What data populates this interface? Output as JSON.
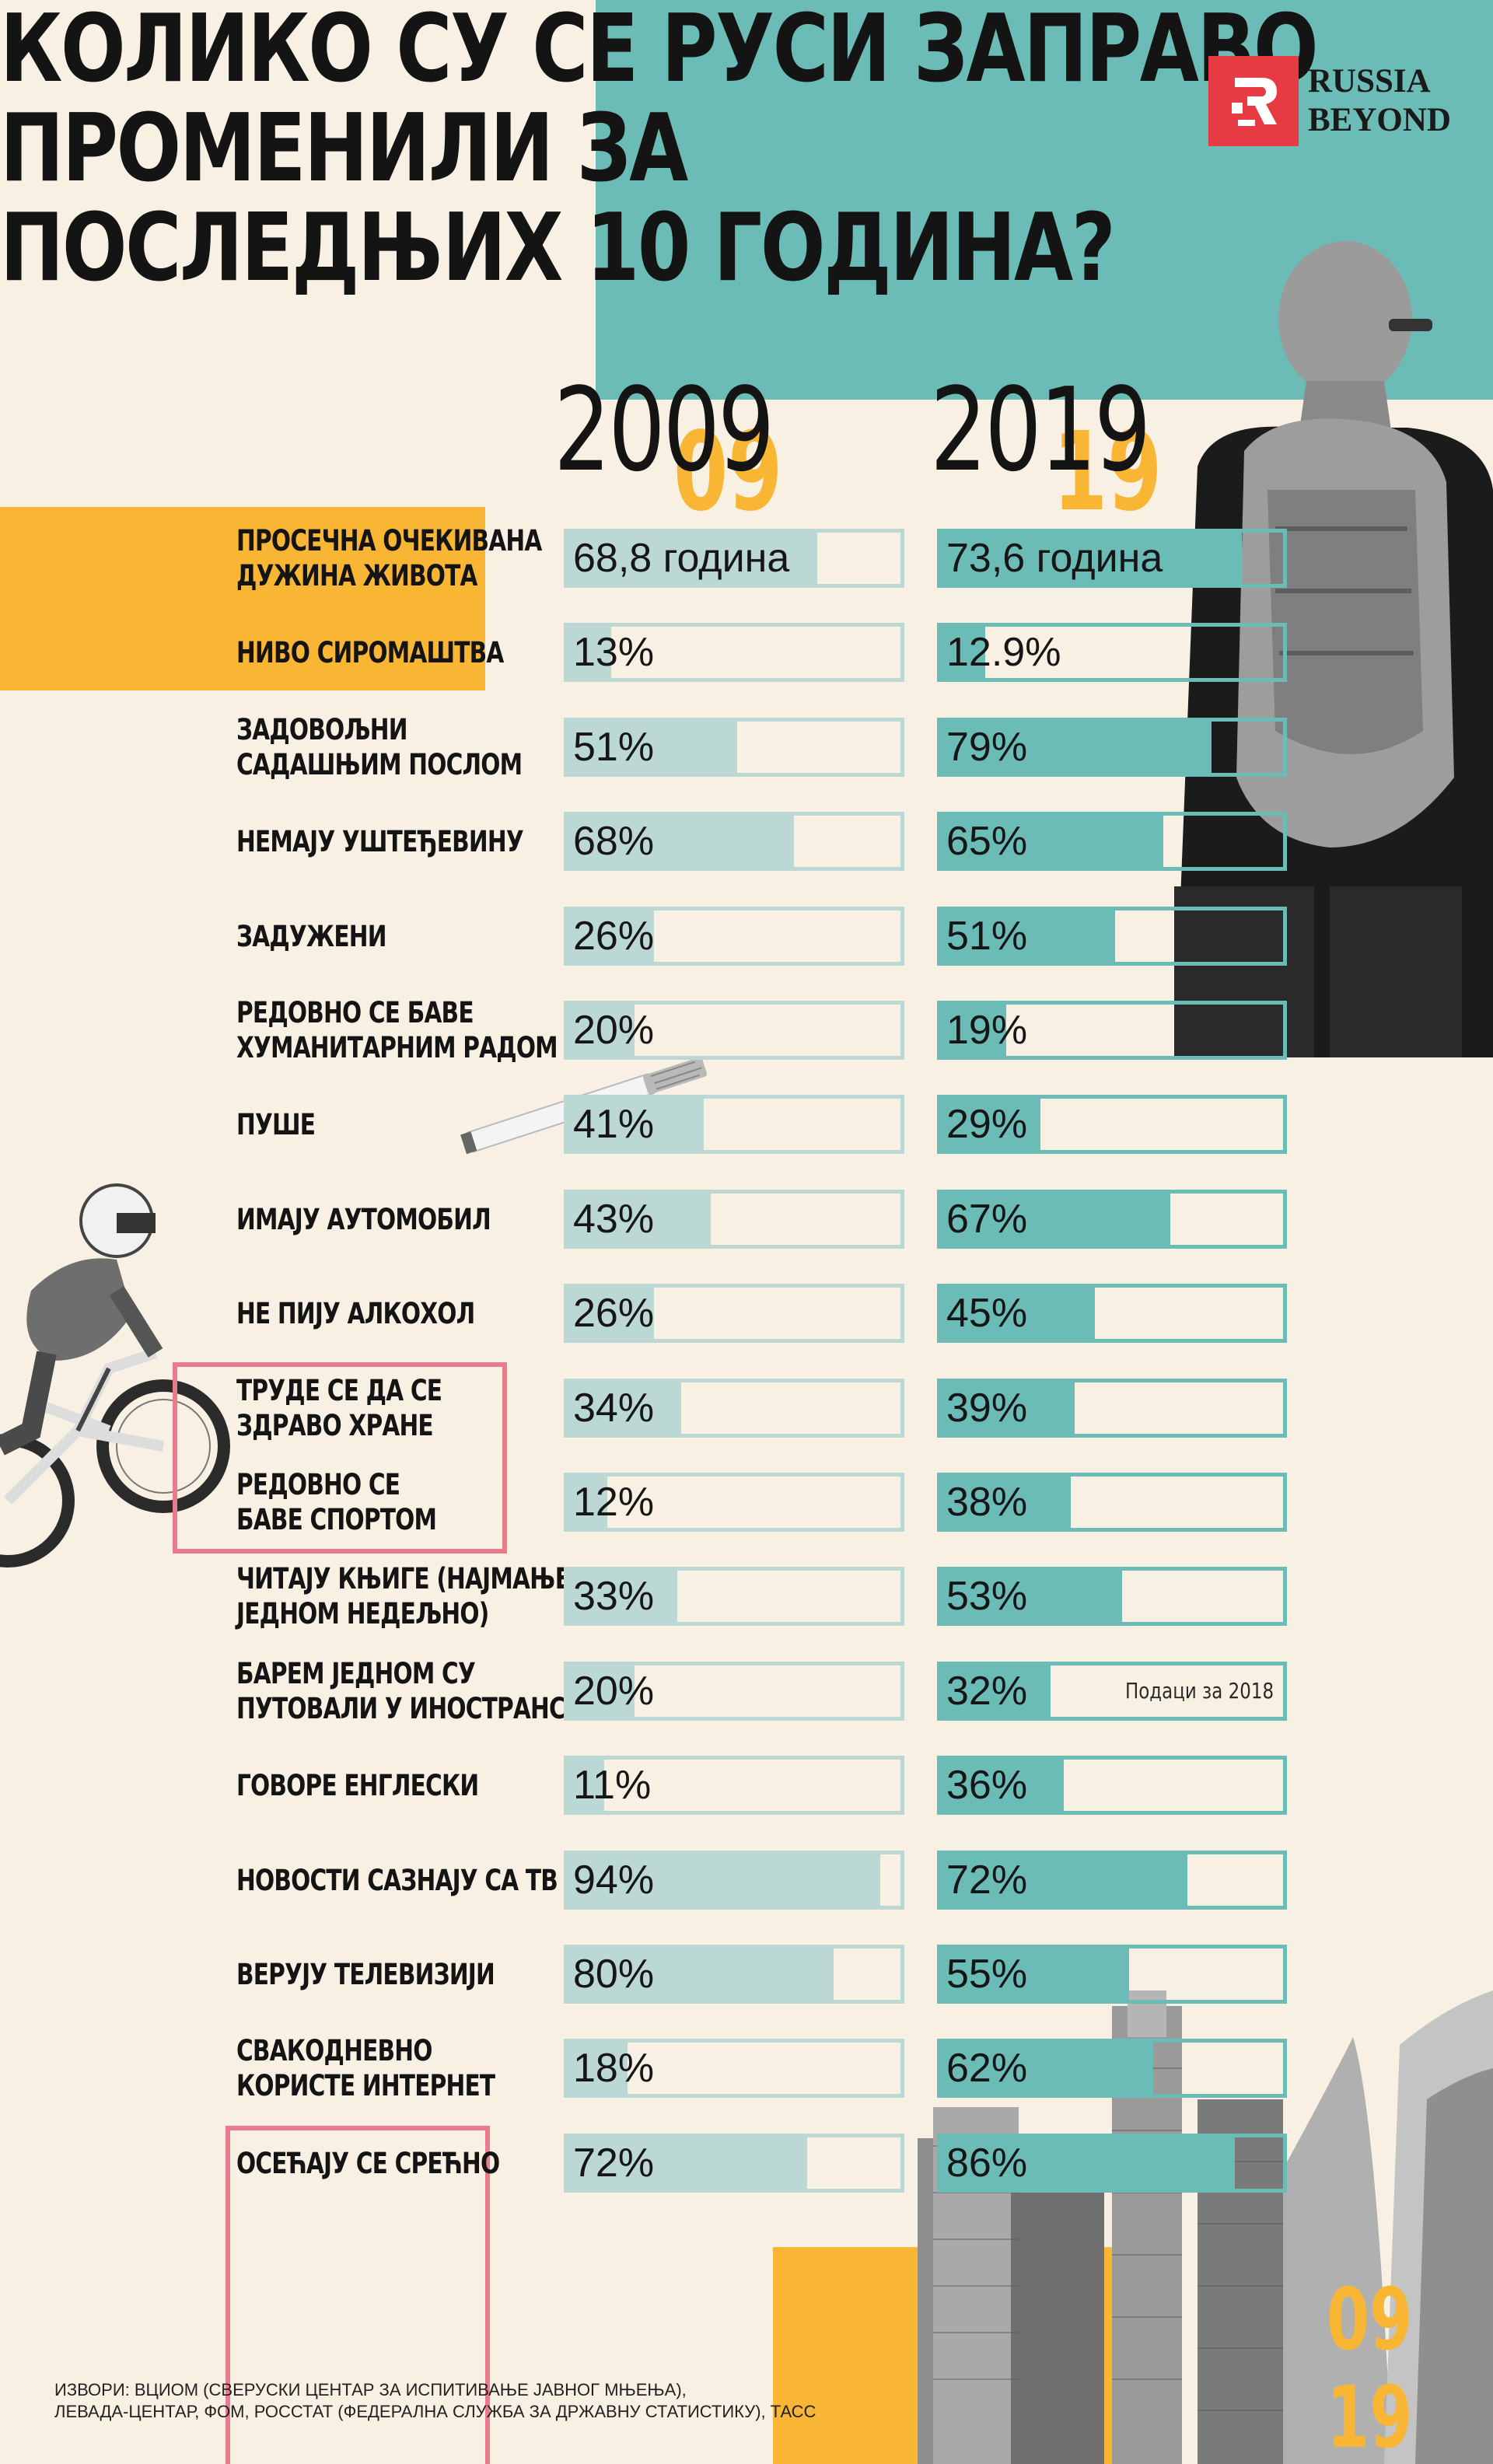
{
  "title": {
    "lines": [
      "Колико су се Руси заправо",
      "променили за",
      "последњих 10 година?"
    ]
  },
  "logo": {
    "line1": "RUSSIA",
    "line2": "BEYOND"
  },
  "years": {
    "a": "2009",
    "b": "2019",
    "a_short": "09",
    "b_short": "19"
  },
  "corner_years": {
    "line1": "09",
    "line2": "19"
  },
  "colors": {
    "teal": "#6bbcb6",
    "light_teal": "#bcd8d5",
    "orange": "#f8b634",
    "pink": "#ea7b8f",
    "background": "#f8f1e3",
    "logo_red": "#e63b42"
  },
  "chart_data": {
    "type": "bar",
    "series": [
      {
        "name": "2009",
        "values": [
          68.8,
          13,
          51,
          68,
          26,
          20,
          41,
          43,
          26,
          34,
          12,
          33,
          20,
          11,
          94,
          80,
          18,
          72
        ]
      },
      {
        "name": "2019",
        "values": [
          73.6,
          12.9,
          79,
          65,
          51,
          19,
          29,
          67,
          45,
          39,
          38,
          53,
          32,
          36,
          72,
          55,
          62,
          86
        ]
      }
    ],
    "rows": [
      {
        "label_lines": [
          "Просечна очекивана",
          "дужина живота"
        ],
        "a_text": "68,8 година",
        "b_text": "73,6 година",
        "a_fill": 0.75,
        "b_fill": 0.88
      },
      {
        "label_lines": [
          "Ниво сиромаштва"
        ],
        "a_text": "13%",
        "b_text": "12.9%",
        "a_fill": 0.13,
        "b_fill": 0.129
      },
      {
        "label_lines": [
          "Задовољни",
          "садашњим послом"
        ],
        "a_text": "51%",
        "b_text": "79%",
        "a_fill": 0.51,
        "b_fill": 0.79
      },
      {
        "label_lines": [
          "Немају уштеђевину"
        ],
        "a_text": "68%",
        "b_text": "65%",
        "a_fill": 0.68,
        "b_fill": 0.65
      },
      {
        "label_lines": [
          "Задужени"
        ],
        "a_text": "26%",
        "b_text": "51%",
        "a_fill": 0.26,
        "b_fill": 0.51
      },
      {
        "label_lines": [
          "Редовно се баве",
          "хуманитарним радом"
        ],
        "a_text": "20%",
        "b_text": "19%",
        "a_fill": 0.2,
        "b_fill": 0.19
      },
      {
        "label_lines": [
          "Пуше"
        ],
        "a_text": "41%",
        "b_text": "29%",
        "a_fill": 0.41,
        "b_fill": 0.29
      },
      {
        "label_lines": [
          "Имају аутомобил"
        ],
        "a_text": "43%",
        "b_text": "67%",
        "a_fill": 0.43,
        "b_fill": 0.67
      },
      {
        "label_lines": [
          "Не пију алкохол"
        ],
        "a_text": "26%",
        "b_text": "45%",
        "a_fill": 0.26,
        "b_fill": 0.45
      },
      {
        "label_lines": [
          "Труде се да се",
          "здраво хране"
        ],
        "a_text": "34%",
        "b_text": "39%",
        "a_fill": 0.34,
        "b_fill": 0.39
      },
      {
        "label_lines": [
          "Редовно се",
          "баве спортом"
        ],
        "a_text": "12%",
        "b_text": "38%",
        "a_fill": 0.12,
        "b_fill": 0.38
      },
      {
        "label_lines": [
          "Читају књиге (најмање",
          "једном недељно)"
        ],
        "a_text": "33%",
        "b_text": "53%",
        "a_fill": 0.33,
        "b_fill": 0.53
      },
      {
        "label_lines": [
          "Барем једном су",
          "путовали у иностранство"
        ],
        "a_text": "20%",
        "b_text": "32%",
        "a_fill": 0.2,
        "b_fill": 0.32,
        "b_note": "Подаци за 2018"
      },
      {
        "label_lines": [
          "Говоре енглески"
        ],
        "a_text": "11%",
        "b_text": "36%",
        "a_fill": 0.11,
        "b_fill": 0.36
      },
      {
        "label_lines": [
          "Новости сазнају са ТВ"
        ],
        "a_text": "94%",
        "b_text": "72%",
        "a_fill": 0.94,
        "b_fill": 0.72
      },
      {
        "label_lines": [
          "Верују телевизији"
        ],
        "a_text": "80%",
        "b_text": "55%",
        "a_fill": 0.8,
        "b_fill": 0.55
      },
      {
        "label_lines": [
          "Свакодневно",
          "користе интернет"
        ],
        "a_text": "18%",
        "b_text": "62%",
        "a_fill": 0.18,
        "b_fill": 0.62
      },
      {
        "label_lines": [
          "Осећају се срећно"
        ],
        "a_text": "72%",
        "b_text": "86%",
        "a_fill": 0.72,
        "b_fill": 0.86
      }
    ]
  },
  "sources": {
    "line1": "Извори: ВЦИОМ (Сверуски центар за испитивање јавног мњења),",
    "line2": "Левада-центар, ФОМ, Росстат (Федерална служба за државну статистику), ТАСС"
  },
  "icons": [
    "logo-r-icon",
    "hiker-photo",
    "cyclist-photo",
    "cigarette-photo",
    "skyscrapers-photo"
  ]
}
